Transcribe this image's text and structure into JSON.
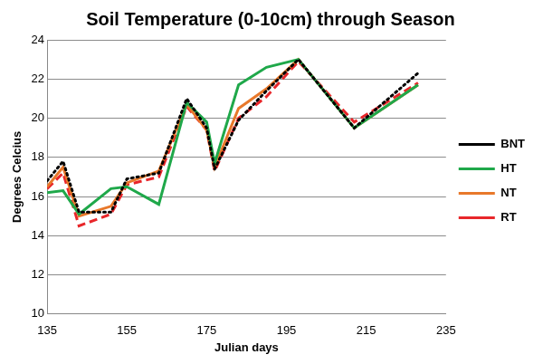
{
  "chart_data": {
    "type": "line",
    "title": "Soil Temperature (0-10cm) through Season",
    "x_label": "Julian days",
    "y_label": "Degrees Celcius",
    "x": [
      135,
      139,
      143,
      151,
      155,
      163,
      170,
      175,
      177,
      183,
      190,
      198,
      212,
      228
    ],
    "series": [
      {
        "name": "BNT",
        "color": "#000000",
        "line_style": "dotted",
        "values": [
          16.8,
          17.8,
          15.2,
          15.2,
          16.9,
          17.2,
          21.0,
          19.5,
          17.4,
          19.9,
          21.4,
          23.0,
          19.5,
          22.3
        ]
      },
      {
        "name": "HT",
        "color": "#1fa84a",
        "line_style": "solid",
        "values": [
          16.2,
          16.3,
          15.1,
          16.4,
          16.5,
          15.6,
          20.8,
          19.8,
          17.7,
          21.7,
          22.6,
          23.0,
          19.5,
          21.7
        ]
      },
      {
        "name": "NT",
        "color": "#e8782a",
        "line_style": "solid",
        "values": [
          16.5,
          17.5,
          15.0,
          15.5,
          16.7,
          17.3,
          20.7,
          19.4,
          17.5,
          20.5,
          21.5,
          23.0,
          19.5,
          21.7
        ]
      },
      {
        "name": "RT",
        "color": "#e8262a",
        "line_style": "dashed",
        "values": [
          16.4,
          17.2,
          14.5,
          15.1,
          16.6,
          17.0,
          20.6,
          19.4,
          17.3,
          20.0,
          21.1,
          22.9,
          19.8,
          21.8
        ]
      }
    ],
    "xlim": [
      135,
      235
    ],
    "xticks": [
      135,
      155,
      175,
      195,
      215,
      235
    ],
    "ylim": [
      10,
      24
    ],
    "yticks": [
      10,
      12,
      14,
      16,
      18,
      20,
      22,
      24
    ],
    "grid": true,
    "legend": "right"
  }
}
